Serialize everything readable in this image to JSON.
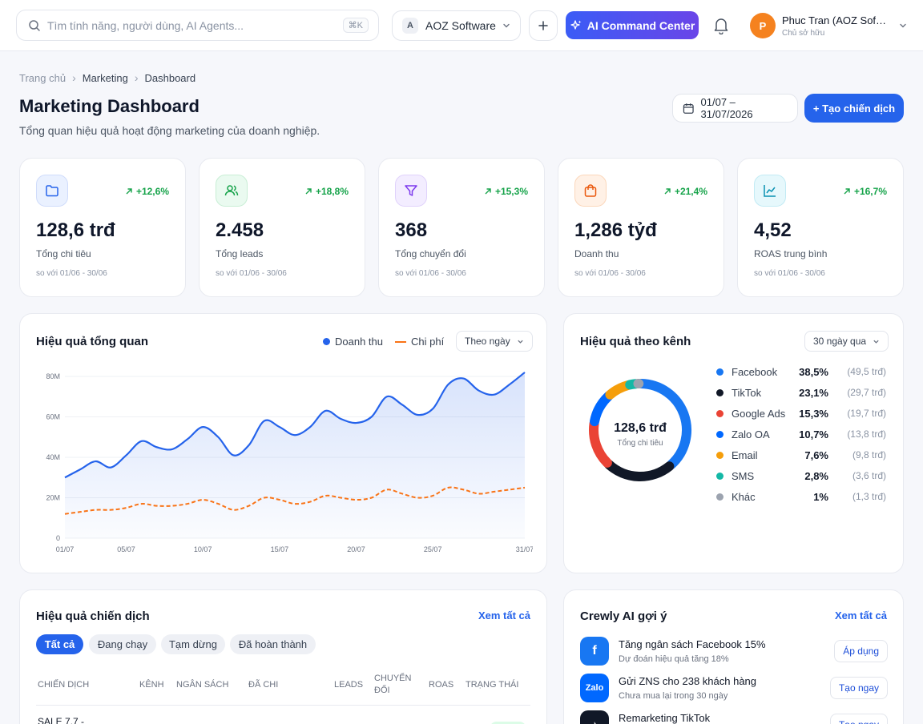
{
  "search": {
    "placeholder": "Tìm tính năng, người dùng, AI Agents...",
    "shortcut": "⌘K"
  },
  "org": {
    "badge": "A",
    "name": "AOZ Software"
  },
  "ai_button": "AI Command Center",
  "user": {
    "initial": "P",
    "name": "Phuc Tran (AOZ Software)",
    "role": "Chủ sở hữu"
  },
  "breadcrumb": [
    "Trang chủ",
    "Marketing",
    "Dashboard"
  ],
  "page": {
    "title": "Marketing Dashboard",
    "subtitle": "Tổng quan hiệu quả hoạt động marketing của doanh nghiệp.",
    "date_range": "01/07 – 31/07/2026",
    "create_label": "+ Tạo chiến dịch"
  },
  "kpis": [
    {
      "value": "128,6 trđ",
      "label": "Tổng chi tiêu",
      "delta": "+12,6%",
      "compare": "so với 01/06 - 30/06",
      "icon": "folder-icon",
      "color": "#2563eb"
    },
    {
      "value": "2.458",
      "label": "Tổng leads",
      "delta": "+18,8%",
      "compare": "so với 01/06 - 30/06",
      "icon": "users-icon",
      "color": "#16a34a"
    },
    {
      "value": "368",
      "label": "Tổng chuyển đổi",
      "delta": "+15,3%",
      "compare": "so với 01/06 - 30/06",
      "icon": "funnel-icon",
      "color": "#7c3aed"
    },
    {
      "value": "1,286 tỷđ",
      "label": "Doanh thu",
      "delta": "+21,4%",
      "compare": "so với 01/06 - 30/06",
      "icon": "shopping-bag-icon",
      "color": "#ea580c"
    },
    {
      "value": "4,52",
      "label": "ROAS trung bình",
      "delta": "+16,7%",
      "compare": "so với 01/06 - 30/06",
      "icon": "line-chart-icon",
      "color": "#0891b2"
    }
  ],
  "overview": {
    "title": "Hiệu quả tổng quan",
    "legend_revenue": "Doanh thu",
    "legend_cost": "Chi phí",
    "period_select": "Theo ngày"
  },
  "channels": {
    "title": "Hiệu quả theo kênh",
    "period_select": "30 ngày qua",
    "center_value": "128,6 trđ",
    "center_label": "Tổng chi tiêu",
    "items": [
      {
        "name": "Facebook",
        "pct": "38,5%",
        "amount": "(49,5 trđ)",
        "color": "#1877f2"
      },
      {
        "name": "TikTok",
        "pct": "23,1%",
        "amount": "(29,7 trđ)",
        "color": "#111827"
      },
      {
        "name": "Google Ads",
        "pct": "15,3%",
        "amount": "(19,7 trđ)",
        "color": "#ea4335"
      },
      {
        "name": "Zalo OA",
        "pct": "10,7%",
        "amount": "(13,8 trđ)",
        "color": "#0068ff"
      },
      {
        "name": "Email",
        "pct": "7,6%",
        "amount": "(9,8 trđ)",
        "color": "#f59e0b"
      },
      {
        "name": "SMS",
        "pct": "2,8%",
        "amount": "(3,6 trđ)",
        "color": "#14b8a6"
      },
      {
        "name": "Khác",
        "pct": "1%",
        "amount": "(1,3 trđ)",
        "color": "#9ca3af"
      }
    ]
  },
  "campaigns": {
    "title": "Hiệu quả chiến dịch",
    "view_all": "Xem tất cả",
    "tabs": [
      "Tất cả",
      "Đang chạy",
      "Tạm dừng",
      "Đã hoàn thành"
    ],
    "columns": [
      "Chiến dịch",
      "Kênh",
      "Ngân sách",
      "Đã chi",
      "Leads",
      "Chuyển đổi",
      "ROAS",
      "Trạng thái"
    ],
    "first_row_name": "SALE 7.7 -"
  },
  "suggestions": {
    "title": "Crewly AI gợi ý",
    "view_all": "Xem tất cả",
    "items": [
      {
        "icon_text": "f",
        "title": "Tăng ngân sách Facebook 15%",
        "desc": "Dự đoán hiệu quả tăng 18%",
        "action": "Áp dụng",
        "color": "#1877f2"
      },
      {
        "icon_text": "Zalo",
        "title": "Gửi ZNS cho 238 khách hàng",
        "desc": "Chưa mua lại trong 30 ngày",
        "action": "Tạo ngay",
        "color": "#0068ff"
      },
      {
        "icon_text": "♪",
        "title": "Remarketing TikTok",
        "desc": "",
        "action": "Tạo ngay",
        "color": "#111827"
      }
    ]
  },
  "chart_data": [
    {
      "type": "area",
      "title": "Hiệu quả tổng quan",
      "x_ticks": [
        "01/07",
        "05/07",
        "10/07",
        "15/07",
        "20/07",
        "25/07",
        "31/07"
      ],
      "y_ticks": [
        "0",
        "20M",
        "40M",
        "60M",
        "80M"
      ],
      "ylim": [
        0,
        80
      ],
      "x": [
        1,
        2,
        3,
        4,
        5,
        6,
        7,
        8,
        9,
        10,
        11,
        12,
        13,
        14,
        15,
        16,
        17,
        18,
        19,
        20,
        21,
        22,
        23,
        24,
        25,
        26,
        27,
        28,
        29,
        30,
        31
      ],
      "series": [
        {
          "name": "Doanh thu",
          "color": "#2563eb",
          "values": [
            30,
            34,
            38,
            35,
            41,
            48,
            45,
            44,
            49,
            55,
            50,
            41,
            46,
            58,
            55,
            51,
            55,
            63,
            59,
            57,
            60,
            70,
            66,
            61,
            64,
            76,
            79,
            73,
            71,
            76,
            82
          ]
        },
        {
          "name": "Chi phí",
          "color": "#f97316",
          "values": [
            12,
            13,
            14,
            14,
            15,
            17,
            16,
            16,
            17,
            19,
            17,
            14,
            16,
            20,
            19,
            17,
            18,
            21,
            20,
            19,
            20,
            24,
            22,
            20,
            21,
            25,
            24,
            22,
            23,
            24,
            25
          ]
        }
      ]
    },
    {
      "type": "pie",
      "title": "Hiệu quả theo kênh",
      "categories": [
        "Facebook",
        "TikTok",
        "Google Ads",
        "Zalo OA",
        "Email",
        "SMS",
        "Khác"
      ],
      "values": [
        38.5,
        23.1,
        15.3,
        10.7,
        7.6,
        2.8,
        1
      ]
    }
  ]
}
